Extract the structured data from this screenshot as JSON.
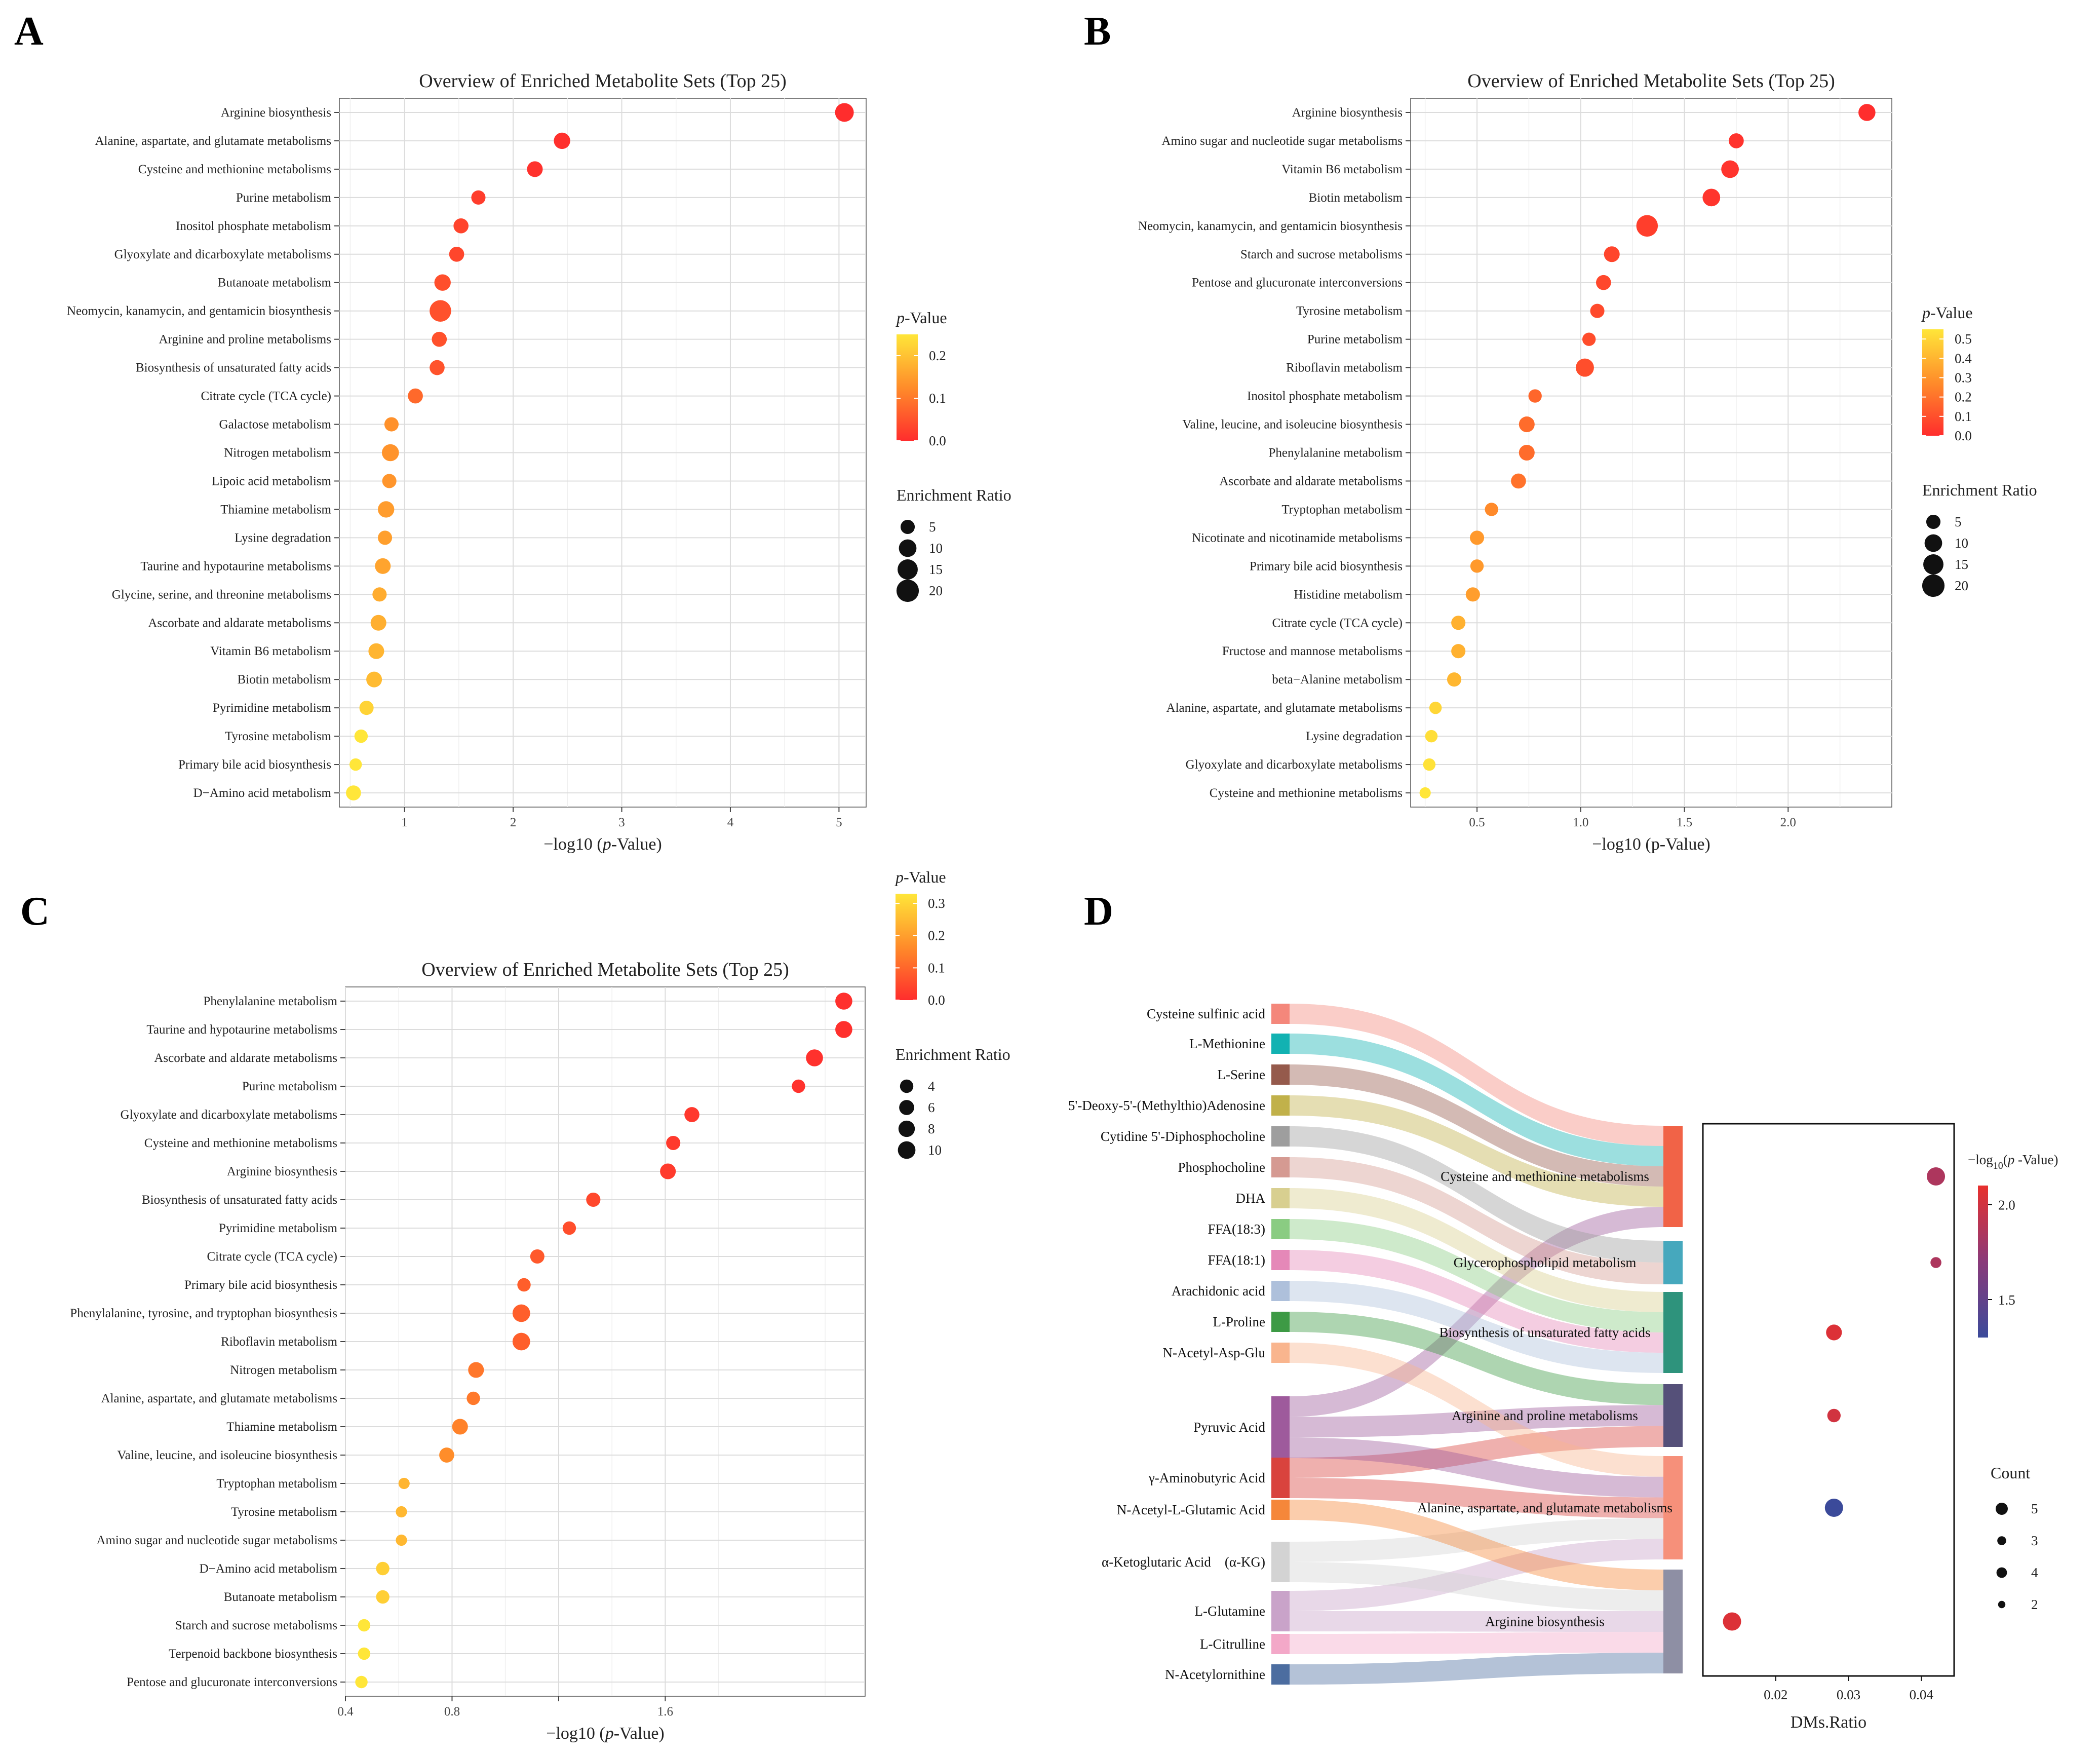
{
  "panel_labels": [
    "A",
    "B",
    "C",
    "D"
  ],
  "chart_data": [
    {
      "panel": "A",
      "type": "scatter",
      "title": "Overview of Enriched Metabolite Sets (Top 25)",
      "xlabel_prefix": "−log10 (",
      "xlabel_italic": "p",
      "xlabel_suffix": "-Value)",
      "xlim": [
        0.4,
        5.25
      ],
      "xticks": [
        1,
        2,
        3,
        4,
        5
      ],
      "xtick_labels": [
        "1",
        "2",
        "3",
        "4",
        "5"
      ],
      "categories": [
        "Arginine biosynthesis",
        "Alanine, aspartate, and glutamate metabolisms",
        "Cysteine and methionine metabolisms",
        "Purine metabolism",
        "Inositol phosphate metabolism",
        "Glyoxylate and dicarboxylate metabolisms",
        "Butanoate metabolism",
        "Neomycin, kanamycin, and gentamicin biosynthesis",
        "Arginine and proline metabolisms",
        "Biosynthesis of unsaturated fatty acids",
        "Citrate cycle (TCA cycle)",
        "Galactose metabolism",
        "Nitrogen metabolism",
        "Lipoic acid metabolism",
        "Thiamine metabolism",
        "Lysine degradation",
        "Taurine and hypotaurine metabolisms",
        "Glycine, serine, and threonine metabolisms",
        "Ascorbate and aldarate metabolisms",
        "Vitamin B6 metabolism",
        "Biotin metabolism",
        "Pyrimidine metabolism",
        "Tyrosine metabolism",
        "Primary bile acid biosynthesis",
        "D−Amino acid metabolism"
      ],
      "neglog10_p": [
        5.05,
        2.45,
        2.2,
        1.68,
        1.52,
        1.48,
        1.35,
        1.33,
        1.32,
        1.3,
        1.1,
        0.88,
        0.87,
        0.86,
        0.83,
        0.82,
        0.8,
        0.77,
        0.76,
        0.74,
        0.72,
        0.65,
        0.6,
        0.55,
        0.53
      ],
      "enrichment_ratio": [
        12,
        8,
        7,
        5,
        6,
        6,
        8,
        18,
        6,
        6,
        6,
        5,
        9,
        5,
        8,
        5,
        7,
        5,
        7,
        7,
        7,
        5,
        4,
        3,
        6
      ],
      "pvalue_legend": {
        "title_italic": "p",
        "title_suffix": "-Value",
        "min": 0.0,
        "max": 0.25,
        "ticks": [
          0.0,
          0.1,
          0.2
        ],
        "tick_labels": [
          "0.0",
          "0.1",
          "0.2"
        ]
      },
      "size_legend": {
        "title": "Enrichment Ratio",
        "values": [
          5,
          10,
          15,
          20
        ],
        "labels": [
          "5",
          "10",
          "15",
          "20"
        ]
      }
    },
    {
      "panel": "B",
      "type": "scatter",
      "title": "Overview of Enriched Metabolite Sets (Top 25)",
      "xlabel_prefix": "−log10 (",
      "xlabel_italic": "",
      "xlabel_suffix": "p-Value)",
      "xlim": [
        0.18,
        2.5
      ],
      "xticks": [
        0.5,
        1.0,
        1.5,
        2.0
      ],
      "xtick_labels": [
        "0.5",
        "1.0",
        "1.5",
        "2.0"
      ],
      "categories": [
        "Arginine biosynthesis",
        "Amino sugar and nucleotide sugar metabolisms",
        "Vitamin B6 metabolism",
        "Biotin metabolism",
        "Neomycin, kanamycin, and gentamicin biosynthesis",
        "Starch and sucrose metabolisms",
        "Pentose and glucuronate interconversions",
        "Tyrosine metabolism",
        "Purine metabolism",
        "Riboflavin metabolism",
        "Inositol phosphate metabolism",
        "Valine, leucine, and isoleucine biosynthesis",
        "Phenylalanine metabolism",
        "Ascorbate and aldarate metabolisms",
        "Tryptophan metabolism",
        "Nicotinate and nicotinamide metabolisms",
        "Primary bile acid biosynthesis",
        "Histidine metabolism",
        "Citrate cycle (TCA cycle)",
        "Fructose and mannose metabolisms",
        "beta−Alanine metabolism",
        "Alanine, aspartate, and glutamate metabolisms",
        "Lysine degradation",
        "Glyoxylate and dicarboxylate metabolisms",
        "Cysteine and methionine metabolisms"
      ],
      "neglog10_p": [
        2.38,
        1.75,
        1.72,
        1.63,
        1.32,
        1.15,
        1.11,
        1.08,
        1.04,
        1.02,
        0.78,
        0.74,
        0.74,
        0.7,
        0.57,
        0.5,
        0.5,
        0.48,
        0.41,
        0.41,
        0.39,
        0.3,
        0.28,
        0.27,
        0.25
      ],
      "enrichment_ratio": [
        9,
        6,
        10,
        10,
        18,
        7,
        6,
        5,
        4,
        11,
        4,
        7,
        7,
        6,
        4,
        5,
        4,
        5,
        5,
        5,
        5,
        3,
        3,
        3,
        2
      ],
      "pvalue_legend": {
        "title_italic": "p",
        "title_suffix": "-Value",
        "min": 0.0,
        "max": 0.55,
        "ticks": [
          0.0,
          0.1,
          0.2,
          0.3,
          0.4,
          0.5
        ],
        "tick_labels": [
          "0.0",
          "0.1",
          "0.2",
          "0.3",
          "0.4",
          "0.5"
        ]
      },
      "size_legend": {
        "title": "Enrichment Ratio",
        "values": [
          5,
          10,
          15,
          20
        ],
        "labels": [
          "5",
          "10",
          "15",
          "20"
        ]
      }
    },
    {
      "panel": "C",
      "type": "scatter",
      "title": "Overview of Enriched Metabolite Sets (Top 25)",
      "xlabel_prefix": "−log10 (",
      "xlabel_italic": "p",
      "xlabel_suffix": "-Value)",
      "xlim": [
        0.4,
        2.35
      ],
      "xticks": [
        0.4,
        0.8,
        1.2,
        1.6
      ],
      "xtick_labels": [
        "0.4",
        "0.8",
        "",
        "1.6"
      ],
      "categories": [
        "Phenylalanine metabolism",
        "Taurine and hypotaurine metabolisms",
        "Ascorbate and aldarate metabolisms",
        "Purine metabolism",
        "Glyoxylate and dicarboxylate metabolisms",
        "Cysteine and methionine metabolisms",
        "Arginine biosynthesis",
        "Biosynthesis of unsaturated fatty acids",
        "Pyrimidine metabolism",
        "Citrate cycle (TCA cycle)",
        "Primary bile acid biosynthesis",
        "Phenylalanine, tyrosine, and tryptophan biosynthesis",
        "Riboflavin metabolism",
        "Nitrogen metabolism",
        "Alanine, aspartate, and glutamate metabolisms",
        "Thiamine metabolism",
        "Valine, leucine, and isoleucine biosynthesis",
        "Tryptophan metabolism",
        "Tyrosine metabolism",
        "Amino sugar and nucleotide sugar metabolisms",
        "D−Amino acid metabolism",
        "Butanoate metabolism",
        "Starch and sucrose metabolisms",
        "Terpenoid backbone biosynthesis",
        "Pentose and glucuronate interconversions"
      ],
      "neglog10_p": [
        2.27,
        2.27,
        2.16,
        2.1,
        1.7,
        1.63,
        1.61,
        1.33,
        1.24,
        1.12,
        1.07,
        1.06,
        1.06,
        0.89,
        0.88,
        0.83,
        0.78,
        0.62,
        0.61,
        0.61,
        0.54,
        0.54,
        0.47,
        0.47,
        0.46
      ],
      "enrichment_ratio": [
        9,
        9,
        9,
        4,
        6,
        5,
        7,
        5,
        4,
        5,
        4,
        10,
        10,
        7,
        4,
        7,
        6,
        2,
        2,
        2,
        4,
        4,
        3,
        3,
        3
      ],
      "pvalue_legend": {
        "title_italic": "p",
        "title_suffix": "-Value",
        "min": 0.0,
        "max": 0.33,
        "ticks": [
          0.0,
          0.1,
          0.2,
          0.3
        ],
        "tick_labels": [
          "0.0",
          "0.1",
          "0.2",
          "0.3"
        ]
      },
      "size_legend": {
        "title": "Enrichment Ratio",
        "values": [
          4,
          6,
          8,
          10
        ],
        "labels": [
          "4",
          "6",
          "8",
          "10"
        ]
      }
    },
    {
      "panel": "D",
      "type": "sankey",
      "metabolites": [
        {
          "name": "Cysteine sulfinic acid",
          "color": "#F4877B"
        },
        {
          "name": "L-Methionine",
          "color": "#12B2B2"
        },
        {
          "name": "L-Serine",
          "color": "#955A4C"
        },
        {
          "name": "5'-Deoxy-5'-(Methylthio)Adenosine",
          "color": "#C1B14A"
        },
        {
          "name": "Cytidine 5'-Diphosphocholine",
          "color": "#9E9E9E"
        },
        {
          "name": "Phosphocholine",
          "color": "#D59A92"
        },
        {
          "name": "DHA",
          "color": "#D8CF90"
        },
        {
          "name": "FFA(18:3)",
          "color": "#8ACC82"
        },
        {
          "name": "FFA(18:1)",
          "color": "#E588B8"
        },
        {
          "name": "Arachidonic acid",
          "color": "#AEC0DB"
        },
        {
          "name": "L-Proline",
          "color": "#3D9A45"
        },
        {
          "name": "N-Acetyl-Asp-Glu",
          "color": "#F9B58E"
        },
        {
          "name": "Pyruvic Acid",
          "color": "#9E5A9C"
        },
        {
          "name": "γ-Aminobutyric Acid",
          "color": "#D9433D"
        },
        {
          "name": "N-Acetyl-L-Glutamic Acid",
          "color": "#F5873A"
        },
        {
          "name": "α-Ketoglutaric Acid　(α-KG)",
          "color": "#D3D3D3"
        },
        {
          "name": "L-Glutamine",
          "color": "#C9A3C9"
        },
        {
          "name": "L-Citrulline",
          "color": "#F3A8C8"
        },
        {
          "name": "N-Acetylornithine",
          "color": "#4C6DA0"
        }
      ],
      "pathways": [
        {
          "name": "Cysteine and methionine metabolisms",
          "color": "#F16347",
          "count": 5,
          "ratio": 0.042,
          "neglog10_p": 1.85
        },
        {
          "name": "Glycerophospholipid metabolism",
          "color": "#46A8BD",
          "count": 2,
          "ratio": 0.042,
          "neglog10_p": 1.85
        },
        {
          "name": "Biosynthesis of unsaturated fatty acids",
          "color": "#2E937C",
          "count": 4,
          "ratio": 0.028,
          "neglog10_p": 2.05
        },
        {
          "name": "Arginine and proline metabolisms",
          "color": "#555079",
          "count": 3,
          "ratio": 0.028,
          "neglog10_p": 2.0
        },
        {
          "name": "Alanine, aspartate, and glutamate metabolisms",
          "color": "#F6907A",
          "count": 5,
          "ratio": 0.028,
          "neglog10_p": 1.3
        },
        {
          "name": "Arginine biosynthesis",
          "color": "#8E8FA4",
          "count": 5,
          "ratio": 0.014,
          "neglog10_p": 2.05
        }
      ],
      "links": [
        [
          0,
          0
        ],
        [
          1,
          0
        ],
        [
          2,
          0
        ],
        [
          3,
          0
        ],
        [
          12,
          0
        ],
        [
          4,
          1
        ],
        [
          5,
          1
        ],
        [
          6,
          2
        ],
        [
          7,
          2
        ],
        [
          8,
          2
        ],
        [
          9,
          2
        ],
        [
          10,
          3
        ],
        [
          12,
          3
        ],
        [
          13,
          3
        ],
        [
          11,
          4
        ],
        [
          12,
          4
        ],
        [
          13,
          4
        ],
        [
          15,
          4
        ],
        [
          16,
          4
        ],
        [
          14,
          5
        ],
        [
          15,
          5
        ],
        [
          16,
          5
        ],
        [
          17,
          5
        ],
        [
          18,
          5
        ]
      ],
      "dot_panel": {
        "xlabel": "DMs.Ratio",
        "xlim": [
          0.01,
          0.0445
        ],
        "xticks": [
          0.02,
          0.03,
          0.04
        ],
        "xtick_labels": [
          "0.02",
          "0.03",
          "0.04"
        ]
      },
      "color_legend": {
        "title_prefix": "−log",
        "title_sub": "10",
        "title_open": "(",
        "title_italic": "p",
        "title_suffix": " -Value)",
        "min": 1.3,
        "max": 2.1,
        "ticks": [
          1.5,
          2.0
        ],
        "tick_labels": [
          "1.5",
          "2.0"
        ],
        "low_color": "#3B4A9A",
        "high_color": "#E8302D"
      },
      "count_legend": {
        "title": "Count",
        "values": [
          5,
          3,
          4,
          2
        ],
        "labels": [
          "5",
          "3",
          "4",
          "2"
        ]
      }
    }
  ]
}
